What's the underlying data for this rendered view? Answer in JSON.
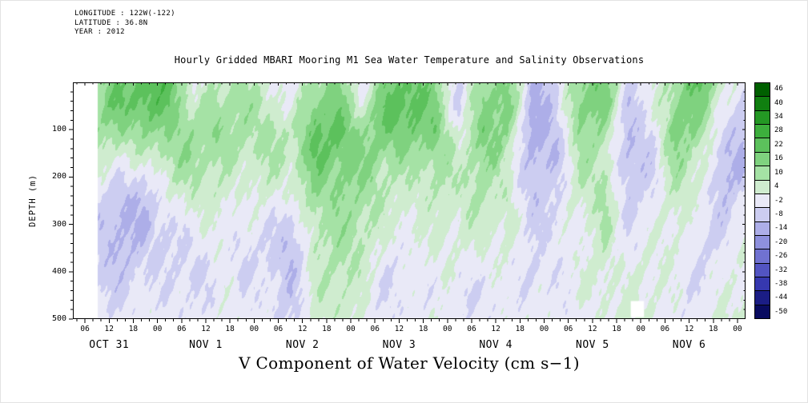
{
  "header": {
    "longitude": "LONGITUDE : 122W(-122)",
    "latitude": "LATITUDE : 36.8N",
    "year": "YEAR : 2012"
  },
  "chart_data": {
    "type": "heatmap",
    "title": "Hourly Gridded MBARI Mooring M1 Sea Water Temperature and Salinity Observations",
    "ylabel": "DEPTH (m)",
    "bottom_label": "V Component of Water Velocity (cm s−1)",
    "x_unit": "hours since OCT 31 2012 00:00",
    "x_domain_hours": [
      3,
      170
    ],
    "y_domain": [
      0,
      500
    ],
    "y_ticks": [
      100,
      200,
      300,
      400,
      500
    ],
    "x_major_hours": [
      6,
      12,
      18,
      24,
      30,
      36,
      42,
      48,
      54,
      60,
      66,
      72,
      78,
      84,
      90,
      96,
      102,
      108,
      114,
      120,
      126,
      132,
      138,
      144,
      150,
      156,
      162,
      168
    ],
    "hour_tick_label_cycle": [
      "06",
      "12",
      "18",
      "00"
    ],
    "day_labels": [
      {
        "label": "OCT 31",
        "hour": 12
      },
      {
        "label": "NOV 1",
        "hour": 36
      },
      {
        "label": "NOV 2",
        "hour": 60
      },
      {
        "label": "NOV 3",
        "hour": 84
      },
      {
        "label": "NOV 4",
        "hour": 108
      },
      {
        "label": "NOV 5",
        "hour": 132
      },
      {
        "label": "NOV 6",
        "hour": 156
      }
    ],
    "colorbar": {
      "tick_values": [
        46,
        40,
        34,
        28,
        22,
        16,
        10,
        4,
        -2,
        -8,
        -14,
        -20,
        -26,
        -32,
        -38,
        -44,
        -50
      ],
      "colors": [
        "#006000",
        "#107f10",
        "#249824",
        "#3daf3d",
        "#5cc15c",
        "#7fd27f",
        "#a5e2a5",
        "#cfeccf",
        "#e9e9f7",
        "#cccdf1",
        "#adaee8",
        "#8e90dd",
        "#7072d1",
        "#5254c2",
        "#3638af",
        "#1b1d85",
        "#090b60"
      ],
      "bin_step": 6
    },
    "grid": {
      "hours": [
        9,
        15,
        21,
        27,
        33,
        39,
        45,
        51,
        57,
        63,
        69,
        75,
        81,
        87,
        93,
        99,
        105,
        111,
        117,
        123,
        129,
        135,
        141,
        147,
        153,
        159,
        165,
        169
      ],
      "depths": [
        0,
        50,
        100,
        150,
        200,
        250,
        300,
        350,
        400,
        450,
        500
      ],
      "values": [
        [
          8,
          10,
          8,
          4,
          0,
          -4,
          -6,
          -6,
          -4,
          -2,
          0
        ],
        [
          18,
          20,
          14,
          6,
          -2,
          -8,
          -10,
          -10,
          -8,
          -6,
          -4
        ],
        [
          26,
          24,
          16,
          6,
          -4,
          -10,
          -12,
          -10,
          -8,
          -6,
          -4
        ],
        [
          22,
          18,
          12,
          8,
          2,
          -4,
          -8,
          -8,
          -6,
          -4,
          -2
        ],
        [
          -4,
          2,
          8,
          10,
          8,
          4,
          0,
          -2,
          -4,
          -2,
          0
        ],
        [
          6,
          10,
          14,
          12,
          8,
          6,
          4,
          2,
          0,
          -2,
          -2
        ],
        [
          12,
          14,
          12,
          8,
          4,
          0,
          -4,
          -6,
          -8,
          -6,
          -4
        ],
        [
          4,
          6,
          8,
          6,
          2,
          -2,
          -6,
          -8,
          -6,
          -4,
          -2
        ],
        [
          -6,
          -4,
          2,
          4,
          2,
          -2,
          -8,
          -10,
          -8,
          -6,
          -4
        ],
        [
          10,
          16,
          20,
          22,
          18,
          14,
          10,
          8,
          6,
          4,
          2
        ],
        [
          16,
          20,
          24,
          20,
          16,
          12,
          10,
          8,
          6,
          4,
          2
        ],
        [
          -2,
          4,
          10,
          12,
          10,
          8,
          6,
          4,
          2,
          0,
          0
        ],
        [
          14,
          18,
          16,
          10,
          6,
          4,
          2,
          0,
          -2,
          -2,
          0
        ],
        [
          20,
          22,
          18,
          12,
          8,
          6,
          4,
          2,
          0,
          -2,
          -2
        ],
        [
          16,
          18,
          20,
          16,
          10,
          6,
          2,
          0,
          -2,
          -4,
          -2
        ],
        [
          -4,
          -6,
          -2,
          2,
          4,
          2,
          0,
          -2,
          -4,
          -6,
          -4
        ],
        [
          8,
          12,
          14,
          12,
          8,
          6,
          4,
          2,
          0,
          -2,
          0
        ],
        [
          14,
          16,
          12,
          8,
          6,
          8,
          6,
          4,
          2,
          0,
          0
        ],
        [
          -8,
          -10,
          -12,
          -10,
          -8,
          -8,
          -6,
          -6,
          -8,
          -6,
          -4
        ],
        [
          -6,
          -8,
          -10,
          -12,
          -10,
          -8,
          -8,
          -6,
          -6,
          -4,
          -2
        ],
        [
          12,
          14,
          10,
          6,
          4,
          2,
          0,
          0,
          2,
          2,
          0
        ],
        [
          16,
          14,
          10,
          8,
          10,
          12,
          10,
          8,
          6,
          4,
          2
        ],
        [
          -4,
          -6,
          -8,
          -10,
          -8,
          -6,
          -4,
          -4,
          -2,
          -2,
          0
        ],
        [
          2,
          0,
          -4,
          -6,
          -8,
          -6,
          -4,
          -2,
          0,
          0,
          0
        ],
        [
          10,
          12,
          14,
          10,
          6,
          4,
          2,
          2,
          0,
          0,
          0
        ],
        [
          18,
          14,
          10,
          6,
          4,
          2,
          0,
          -2,
          -2,
          0,
          0
        ],
        [
          6,
          2,
          -4,
          -8,
          -10,
          -8,
          -6,
          -4,
          -2,
          -2,
          0
        ],
        [
          -2,
          -6,
          -8,
          -10,
          -8,
          -6,
          -4,
          -2,
          -2,
          0,
          0
        ]
      ],
      "gaps": [
        {
          "h0": 141.5,
          "h1": 144.8,
          "d0": 462,
          "d1": 496
        }
      ]
    }
  }
}
